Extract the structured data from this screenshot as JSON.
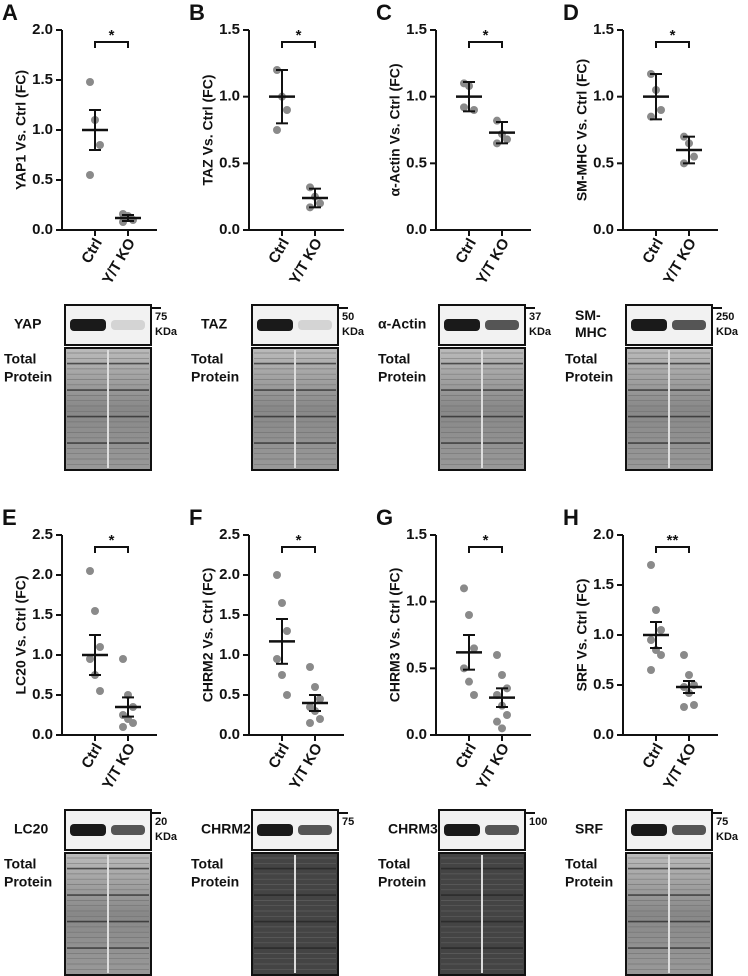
{
  "chart_data": [
    {
      "type": "dot",
      "panel": "A",
      "ylabel": "YAP1 Vs. Ctrl (FC)",
      "categories": [
        "Ctrl",
        "Y/T KO"
      ],
      "values": [
        [
          1.48,
          1.1,
          0.85,
          0.55
        ],
        [
          0.16,
          0.12,
          0.1,
          0.08,
          0.14
        ]
      ],
      "mean": [
        1.0,
        0.12
      ],
      "error": [
        0.2,
        0.03
      ],
      "ylim": [
        0,
        2
      ],
      "yticks": [
        {
          "value": 0,
          "label": "0.0"
        },
        {
          "value": 0.5,
          "label": "0.5"
        },
        {
          "value": 1,
          "label": "1.0"
        },
        {
          "value": 1.5,
          "label": "1.5"
        },
        {
          "value": 2,
          "label": "2.0"
        }
      ],
      "significance": "*",
      "color": "#8a8a8a",
      "blot": {
        "label": [
          "YAP"
        ],
        "marker": "75",
        "unit": "KDa",
        "total": [
          "Total",
          "Protein"
        ]
      }
    },
    {
      "type": "dot",
      "panel": "B",
      "ylabel": "TAZ Vs. Ctrl (FC)",
      "categories": [
        "Ctrl",
        "Y/T KO"
      ],
      "values": [
        [
          1.2,
          1.0,
          0.9,
          0.75
        ],
        [
          0.32,
          0.25,
          0.2,
          0.17
        ]
      ],
      "mean": [
        1.0,
        0.24
      ],
      "error": [
        0.2,
        0.07
      ],
      "ylim": [
        0,
        1.5
      ],
      "yticks": [
        {
          "value": 0,
          "label": "0.0"
        },
        {
          "value": 0.5,
          "label": "0.5"
        },
        {
          "value": 1,
          "label": "1.0"
        },
        {
          "value": 1.5,
          "label": "1.5"
        }
      ],
      "significance": "*",
      "color": "#8a8a8a",
      "blot": {
        "label": [
          "TAZ"
        ],
        "marker": "50",
        "unit": "KDa",
        "total": [
          "Total",
          "Protein"
        ]
      }
    },
    {
      "type": "dot",
      "panel": "C",
      "ylabel": "α-Actin Vs. Ctrl (FC)",
      "categories": [
        "Ctrl",
        "Y/T KO"
      ],
      "values": [
        [
          1.1,
          1.08,
          0.9,
          0.92
        ],
        [
          0.82,
          0.72,
          0.68,
          0.65
        ]
      ],
      "mean": [
        1.0,
        0.73
      ],
      "error": [
        0.11,
        0.08
      ],
      "ylim": [
        0,
        1.5
      ],
      "yticks": [
        {
          "value": 0,
          "label": "0.0"
        },
        {
          "value": 0.5,
          "label": "0.5"
        },
        {
          "value": 1,
          "label": "1.0"
        },
        {
          "value": 1.5,
          "label": "1.5"
        }
      ],
      "significance": "*",
      "color": "#8a8a8a",
      "blot": {
        "label": [
          "α-Actin"
        ],
        "marker": "37",
        "unit": "KDa",
        "total": [
          "Total",
          "Protein"
        ]
      }
    },
    {
      "type": "dot",
      "panel": "D",
      "ylabel": "SM-MHC Vs. Ctrl (FC)",
      "categories": [
        "Ctrl",
        "Y/T KO"
      ],
      "values": [
        [
          1.17,
          1.05,
          0.9,
          0.85
        ],
        [
          0.7,
          0.65,
          0.55,
          0.5
        ]
      ],
      "mean": [
        1.0,
        0.6
      ],
      "error": [
        0.17,
        0.1
      ],
      "ylim": [
        0,
        1.5
      ],
      "yticks": [
        {
          "value": 0,
          "label": "0.0"
        },
        {
          "value": 0.5,
          "label": "0.5"
        },
        {
          "value": 1,
          "label": "1.0"
        },
        {
          "value": 1.5,
          "label": "1.5"
        }
      ],
      "significance": "*",
      "color": "#8a8a8a",
      "blot": {
        "label": [
          "SM-",
          "MHC"
        ],
        "marker": "250",
        "unit": "KDa",
        "total": [
          "Total",
          "Protein"
        ]
      }
    },
    {
      "type": "dot",
      "panel": "E",
      "ylabel": "LC20 Vs. Ctrl (FC)",
      "categories": [
        "Ctrl",
        "Y/T KO"
      ],
      "values": [
        [
          2.05,
          1.55,
          1.1,
          0.95,
          0.75,
          0.55
        ],
        [
          0.95,
          0.5,
          0.35,
          0.25,
          0.2,
          0.15,
          0.1
        ]
      ],
      "mean": [
        1.0,
        0.35
      ],
      "error": [
        0.25,
        0.12
      ],
      "ylim": [
        0,
        2.5
      ],
      "yticks": [
        {
          "value": 0,
          "label": "0.0"
        },
        {
          "value": 0.5,
          "label": "0.5"
        },
        {
          "value": 1,
          "label": "1.0"
        },
        {
          "value": 1.5,
          "label": "1.5"
        },
        {
          "value": 2,
          "label": "2.0"
        },
        {
          "value": 2.5,
          "label": "2.5"
        }
      ],
      "significance": "*",
      "color": "#8a8a8a",
      "blot": {
        "label": [
          "LC20"
        ],
        "marker": "20",
        "unit": "KDa",
        "total": [
          "Total",
          "Protein"
        ]
      }
    },
    {
      "type": "dot",
      "panel": "F",
      "ylabel": "CHRM2 Vs. Ctrl (FC)",
      "categories": [
        "Ctrl",
        "Y/T KO"
      ],
      "values": [
        [
          2.0,
          1.65,
          1.3,
          0.95,
          0.75,
          0.5
        ],
        [
          0.85,
          0.6,
          0.45,
          0.35,
          0.3,
          0.2,
          0.15
        ]
      ],
      "mean": [
        1.17,
        0.4
      ],
      "error": [
        0.28,
        0.1
      ],
      "ylim": [
        0,
        2.5
      ],
      "yticks": [
        {
          "value": 0,
          "label": "0.0"
        },
        {
          "value": 0.5,
          "label": "0.5"
        },
        {
          "value": 1,
          "label": "1.0"
        },
        {
          "value": 1.5,
          "label": "1.5"
        },
        {
          "value": 2,
          "label": "2.0"
        },
        {
          "value": 2.5,
          "label": "2.5"
        }
      ],
      "significance": "*",
      "color": "#8a8a8a",
      "blot": {
        "label": [
          "CHRM2"
        ],
        "marker": "75",
        "total": [
          "Total",
          "Protein"
        ]
      }
    },
    {
      "type": "dot",
      "panel": "G",
      "ylabel": "CHRM3 Vs. Ctrl (FC)",
      "categories": [
        "Ctrl",
        "Y/T KO"
      ],
      "values": [
        [
          1.1,
          0.9,
          0.65,
          0.5,
          0.4,
          0.3
        ],
        [
          0.6,
          0.45,
          0.35,
          0.3,
          0.22,
          0.15,
          0.1,
          0.05
        ]
      ],
      "mean": [
        0.62,
        0.28
      ],
      "error": [
        0.13,
        0.07
      ],
      "ylim": [
        0,
        1.5
      ],
      "yticks": [
        {
          "value": 0,
          "label": "0.0"
        },
        {
          "value": 0.5,
          "label": "0.5"
        },
        {
          "value": 1,
          "label": "1.0"
        },
        {
          "value": 1.5,
          "label": "1.5"
        }
      ],
      "significance": "*",
      "color": "#8a8a8a",
      "blot": {
        "label": [
          "CHRM3"
        ],
        "marker": "100",
        "total": [
          "Total",
          "Protein"
        ]
      }
    },
    {
      "type": "dot",
      "panel": "H",
      "ylabel": "SRF Vs. Ctrl (FC)",
      "categories": [
        "Ctrl",
        "Y/T KO"
      ],
      "values": [
        [
          1.7,
          1.25,
          1.05,
          0.95,
          0.85,
          0.8,
          0.65
        ],
        [
          0.8,
          0.6,
          0.5,
          0.48,
          0.42,
          0.3,
          0.28
        ]
      ],
      "mean": [
        1.0,
        0.48
      ],
      "error": [
        0.13,
        0.06
      ],
      "ylim": [
        0,
        2
      ],
      "yticks": [
        {
          "value": 0,
          "label": "0.0"
        },
        {
          "value": 0.5,
          "label": "0.5"
        },
        {
          "value": 1,
          "label": "1.0"
        },
        {
          "value": 1.5,
          "label": "1.5"
        },
        {
          "value": 2,
          "label": "2.0"
        }
      ],
      "significance": "**",
      "color": "#8a8a8a",
      "blot": {
        "label": [
          "SRF"
        ],
        "marker": "75",
        "unit": "KDa",
        "total": [
          "Total",
          "Protein"
        ]
      }
    }
  ]
}
